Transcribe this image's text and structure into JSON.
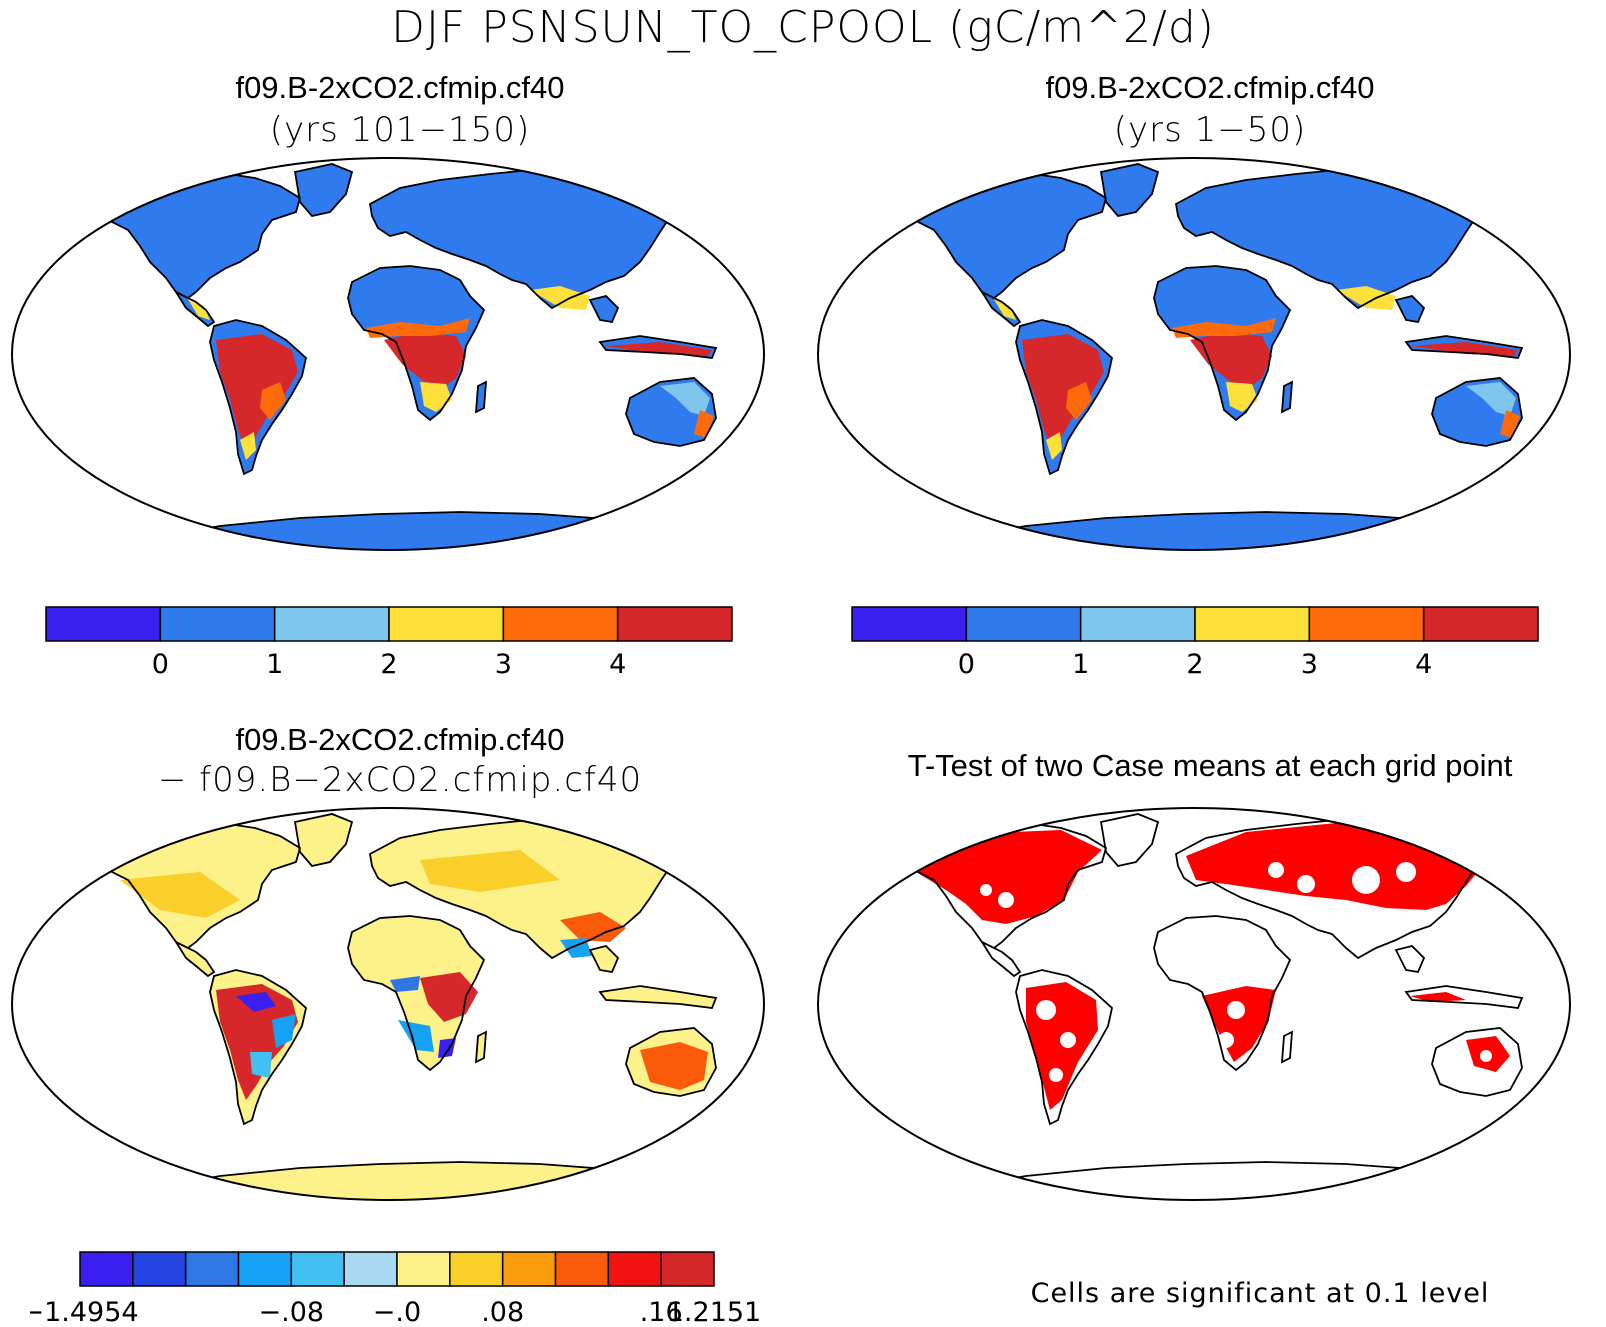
{
  "figure": {
    "title": "DJF PSNSUN_TO_CPOOL (gC/m^2/d)"
  },
  "panels": {
    "top_left": {
      "title": "f09.B-2xCO2.cfmip.cf40",
      "subtitle": "(yrs 101−150)"
    },
    "top_right": {
      "title": "f09.B-2xCO2.cfmip.cf40",
      "subtitle": "(yrs 1−50)"
    },
    "bottom_left": {
      "title": "f09.B-2xCO2.cfmip.cf40",
      "subtitle": "− f09.B−2xCO2.cfmip.cf40"
    },
    "bottom_right": {
      "title": "T-Test of two Case means at each grid point",
      "note": "Cells are significant at 0.1 level"
    }
  },
  "colorbar_abs": {
    "colors": [
      "#3a1ff0",
      "#2f7bed",
      "#7ec6ee",
      "#fde03a",
      "#ff6a0a",
      "#d6282a"
    ],
    "labels": [
      "0",
      "1",
      "2",
      "3",
      "4"
    ]
  },
  "colorbar_diff": {
    "colors": [
      "#3a1ff0",
      "#2445e2",
      "#3077e6",
      "#17a1f5",
      "#43c0f2",
      "#a8d9f2",
      "#fdf28a",
      "#fbcf2a",
      "#fb9c0c",
      "#fb5a0a",
      "#f31212",
      "#d6282a"
    ],
    "labels": [
      "−1.4954",
      "",
      "−.08",
      "−.0",
      ".08",
      "",
      ".16",
      "1.2151"
    ]
  },
  "map_colors": {
    "ocean": "#ffffff",
    "significant": "#ff0000",
    "diff_background": "#fdf28a"
  }
}
